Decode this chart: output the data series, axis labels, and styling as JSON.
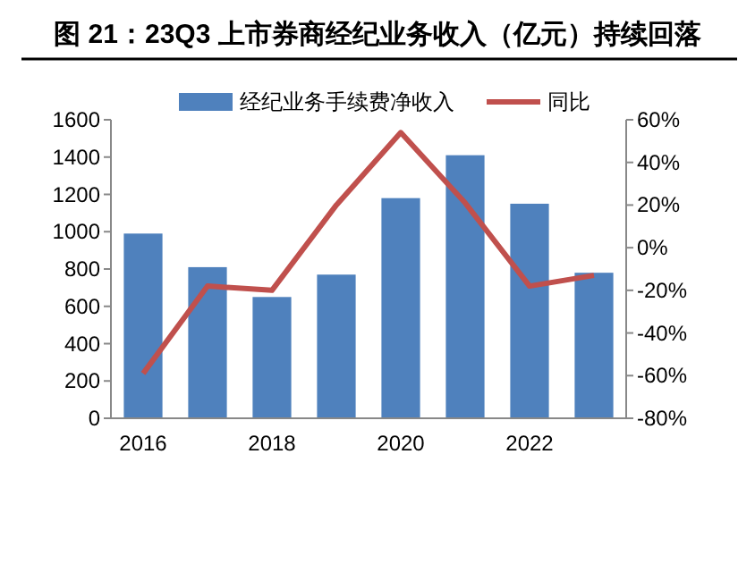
{
  "chart_data": {
    "type": "bar",
    "title": "图 21：23Q3 上市券商经纪业务收入（亿元）持续回落",
    "categories": [
      "2016",
      null,
      "2018",
      null,
      "2020",
      null,
      "2022",
      null
    ],
    "series": [
      {
        "name": "经纪业务手续费净收入",
        "color": "#4f81bd",
        "values": [
          990,
          810,
          650,
          770,
          1180,
          1410,
          1150,
          780
        ]
      },
      {
        "name": "同比",
        "type": "line",
        "axis": "y2",
        "color": "#c0504d",
        "values": [
          -59,
          -18,
          -20,
          20,
          54,
          21,
          -18,
          -13
        ]
      }
    ],
    "ylim": [
      0,
      1600
    ],
    "yticks": [
      0,
      200,
      400,
      600,
      800,
      1000,
      1200,
      1400,
      1600
    ],
    "y2lim": [
      -80,
      60
    ],
    "y2ticks": [
      {
        "value": -80,
        "label": "-80%"
      },
      {
        "value": -60,
        "label": "-60%"
      },
      {
        "value": -40,
        "label": "-40%"
      },
      {
        "value": -20,
        "label": "-20%"
      },
      {
        "value": 0,
        "label": "0%"
      },
      {
        "value": 20,
        "label": "20%"
      },
      {
        "value": 40,
        "label": "40%"
      },
      {
        "value": 60,
        "label": "60%"
      }
    ],
    "legend": "top",
    "grid": false
  }
}
